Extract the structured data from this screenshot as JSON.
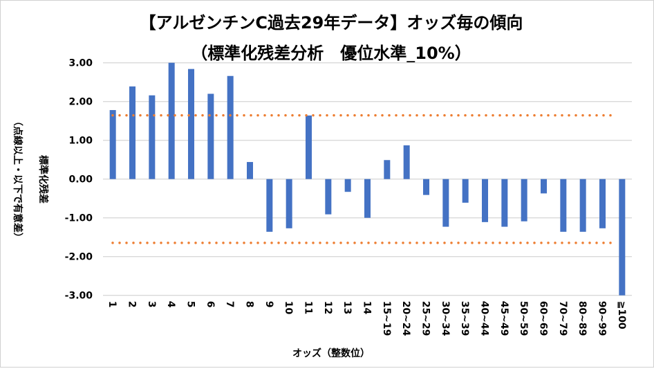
{
  "chart_data": {
    "type": "bar",
    "title_line1": "【アルゼンチンC過去29年データ】オッズ毎の傾向",
    "title_line2": "（標準化残差分析　優位水準_10%）",
    "ylabel": "標準化残差",
    "ylabel_note": "（点線以上・以下で有意差）",
    "xlabel": "オッズ（整数位）",
    "ylim": [
      -3,
      3
    ],
    "yticks": [
      "3.00",
      "2.00",
      "1.00",
      "0.00",
      "-1.00",
      "-2.00",
      "-3.00"
    ],
    "ytick_values": [
      3,
      2,
      1,
      0,
      -1,
      -2,
      -3
    ],
    "grid": true,
    "categories": [
      "1",
      "2",
      "3",
      "4",
      "5",
      "6",
      "7",
      "8",
      "9",
      "10",
      "11",
      "12",
      "13",
      "14",
      "15~19",
      "20~24",
      "25~29",
      "30~34",
      "35~39",
      "40~44",
      "45~49",
      "50~59",
      "60~69",
      "70~79",
      "80~89",
      "90~99",
      "≧100"
    ],
    "values": [
      1.78,
      2.39,
      2.16,
      3.0,
      2.84,
      2.2,
      2.66,
      0.44,
      -1.36,
      -1.27,
      1.64,
      -0.91,
      -0.33,
      -1.0,
      0.49,
      0.87,
      -0.41,
      -1.23,
      -0.61,
      -1.11,
      -1.23,
      -1.09,
      -0.37,
      -1.36,
      -1.36,
      -1.27,
      -3.0
    ],
    "threshold_upper": 1.645,
    "threshold_lower": -1.645,
    "colors": {
      "bar": "#4472C4",
      "threshold": "#ED7D31",
      "grid": "#D9D9D9"
    }
  }
}
